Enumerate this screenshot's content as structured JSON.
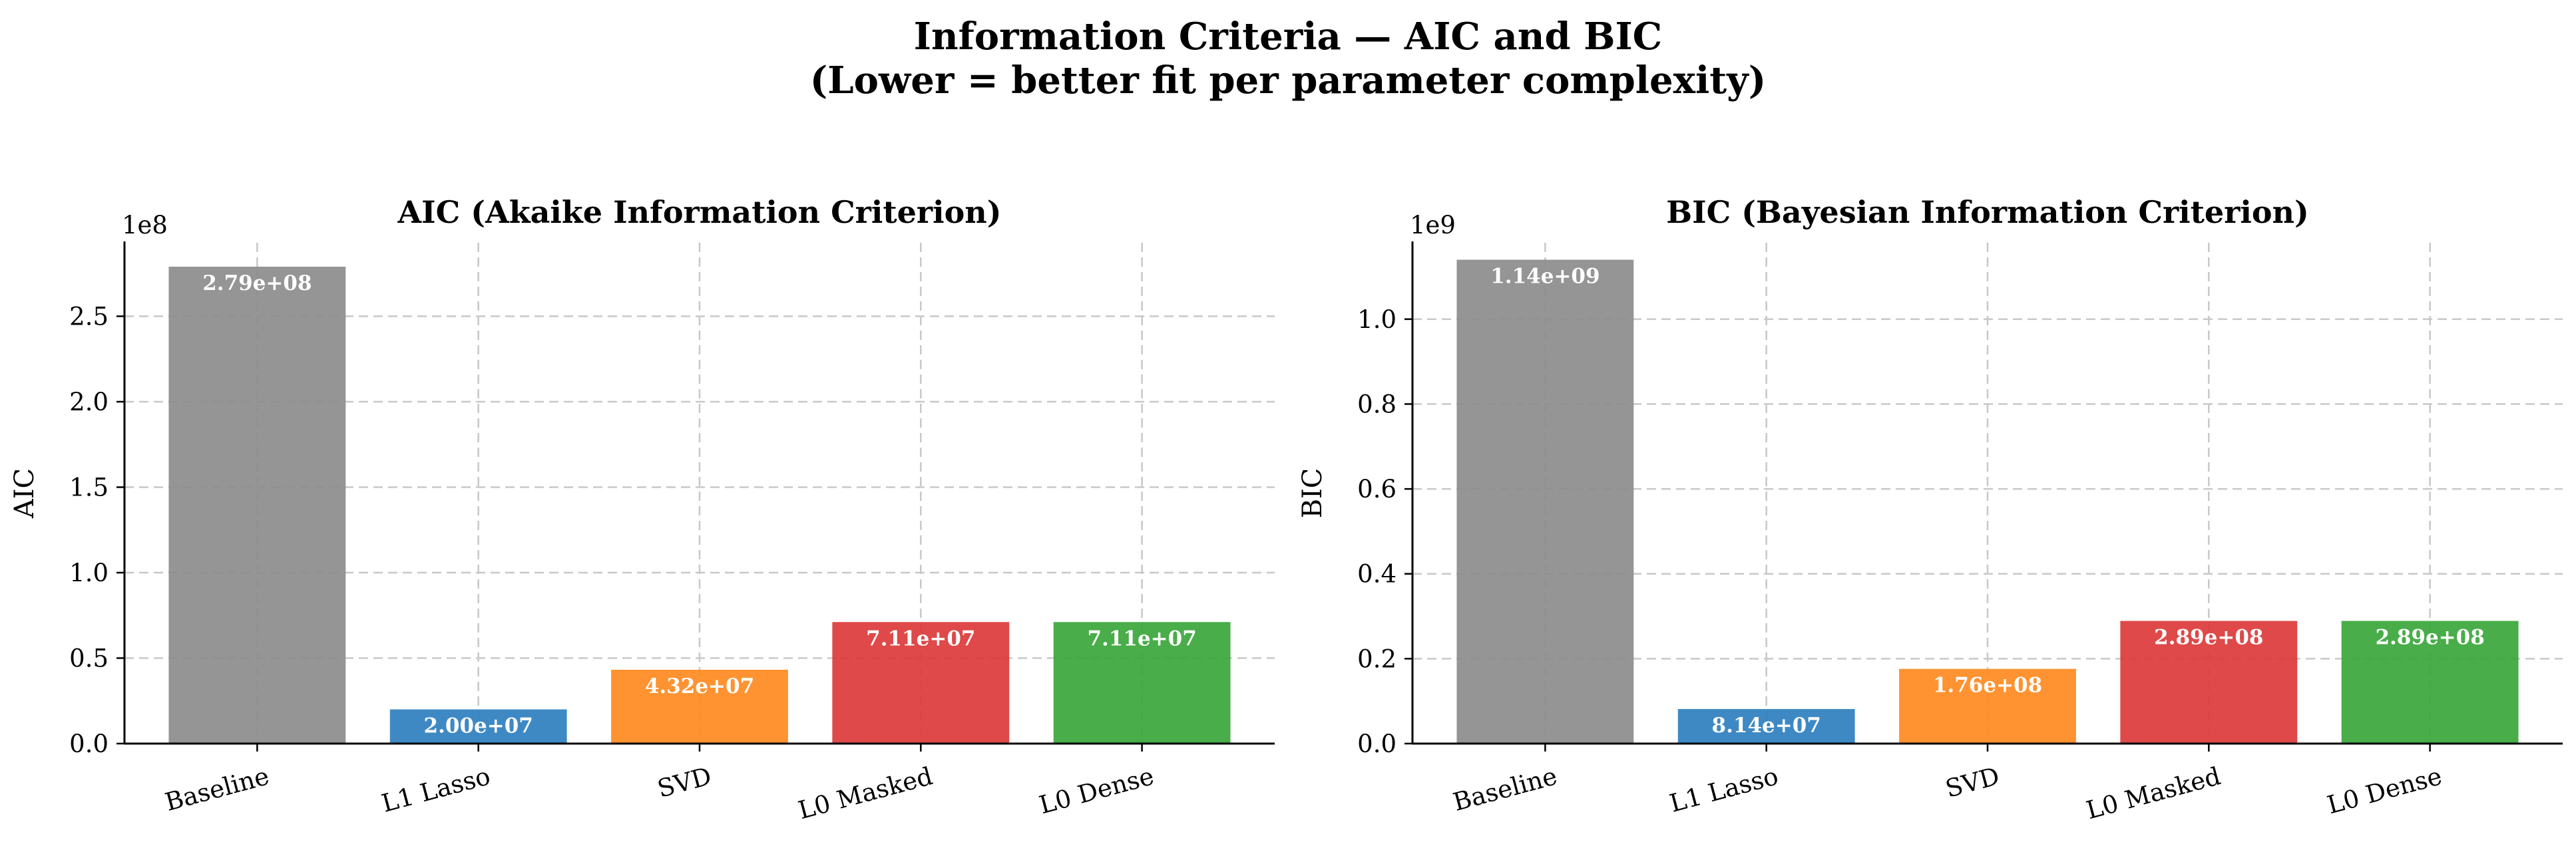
{
  "figure": {
    "title_line1": "Information Criteria — AIC and BIC",
    "title_line2": "(Lower = better fit per parameter complexity)"
  },
  "chart_data": [
    {
      "type": "bar",
      "title": "AIC (Akaike Information Criterion)",
      "xlabel": "",
      "ylabel": "AIC",
      "scale_label": "1e8",
      "categories": [
        "Baseline",
        "L1 Lasso",
        "SVD",
        "L0 Masked",
        "L0 Dense"
      ],
      "values": [
        279000000,
        20000000,
        43200000,
        71100000,
        71100000
      ],
      "value_labels": [
        "2.79e+08",
        "2.00e+07",
        "4.32e+07",
        "7.11e+07",
        "7.11e+07"
      ],
      "colors": [
        "#8c8c8c",
        "#2e7fbf",
        "#ff8a1f",
        "#dc3a3a",
        "#3aa63a"
      ],
      "yticks": [
        0,
        50000000,
        100000000,
        150000000,
        200000000,
        250000000
      ],
      "ytick_labels": [
        "0.0",
        "0.5",
        "1.0",
        "1.5",
        "2.0",
        "2.5"
      ],
      "ylim": [
        0,
        293000000
      ],
      "grid": true
    },
    {
      "type": "bar",
      "title": "BIC (Bayesian Information Criterion)",
      "xlabel": "",
      "ylabel": "BIC",
      "scale_label": "1e9",
      "categories": [
        "Baseline",
        "L1 Lasso",
        "SVD",
        "L0 Masked",
        "L0 Dense"
      ],
      "values": [
        1140000000,
        81400000,
        176000000,
        289000000,
        289000000
      ],
      "value_labels": [
        "1.14e+09",
        "8.14e+07",
        "1.76e+08",
        "2.89e+08",
        "2.89e+08"
      ],
      "colors": [
        "#8c8c8c",
        "#2e7fbf",
        "#ff8a1f",
        "#dc3a3a",
        "#3aa63a"
      ],
      "yticks": [
        0,
        200000000,
        400000000,
        600000000,
        800000000,
        1000000000
      ],
      "ytick_labels": [
        "0.0",
        "0.2",
        "0.4",
        "0.6",
        "0.8",
        "1.0"
      ],
      "ylim": [
        0,
        1180000000
      ],
      "grid": true
    }
  ]
}
